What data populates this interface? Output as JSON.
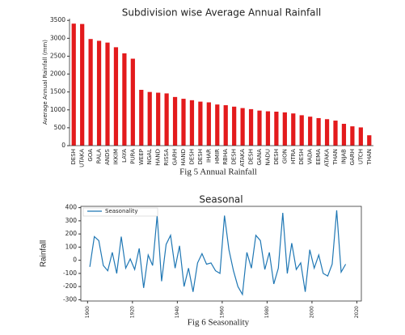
{
  "chart_data": [
    {
      "type": "bar",
      "title": "Subdivision wise Average Annual Rainfall",
      "ylabel": "Average Annual Rainfall (mm)",
      "caption": "Fig 5 Annual Rainfall",
      "categories": [
        "DESH",
        "UTAKA",
        "GOA",
        "RALA",
        "ANDS",
        "IKKIM",
        "LAYA",
        "PURA",
        "WEEP",
        "NGAL",
        "HAND",
        "RISSA",
        "GARH",
        "HAND",
        "DESH",
        "DESH",
        "IHAR",
        "HMIR",
        "RBHA",
        "DESH",
        "ATAKA",
        "DESH",
        "GANA",
        "NADU",
        "DESH",
        "GION",
        "HTRA",
        "DESH",
        "VADA",
        "EEMA",
        "ATAKA",
        "THAN",
        "INJAB",
        "GARH",
        "UTCH",
        "THAN"
      ],
      "values": [
        3410,
        3400,
        2980,
        2930,
        2880,
        2750,
        2580,
        2430,
        1560,
        1500,
        1480,
        1460,
        1360,
        1310,
        1270,
        1230,
        1210,
        1150,
        1130,
        1090,
        1050,
        1020,
        980,
        960,
        950,
        930,
        900,
        850,
        810,
        770,
        740,
        700,
        610,
        540,
        510,
        290
      ],
      "color": "#e31a1c",
      "ylim": [
        0,
        3550
      ],
      "yticks": [
        0,
        500,
        1000,
        1500,
        2000,
        2500,
        3000,
        3500
      ]
    },
    {
      "type": "line",
      "title": "Seasonal",
      "ylabel": "Rainfall",
      "caption": "Fig 6 Seasonality",
      "x": [
        1901,
        1903,
        1905,
        1907,
        1909,
        1911,
        1913,
        1915,
        1917,
        1919,
        1921,
        1923,
        1925,
        1927,
        1929,
        1931,
        1933,
        1935,
        1937,
        1939,
        1941,
        1943,
        1945,
        1947,
        1949,
        1951,
        1953,
        1955,
        1957,
        1959,
        1961,
        1963,
        1965,
        1967,
        1969,
        1971,
        1973,
        1975,
        1977,
        1979,
        1981,
        1983,
        1985,
        1987,
        1989,
        1991,
        1993,
        1995,
        1997,
        1999,
        2001,
        2003,
        2005,
        2007,
        2009,
        2011,
        2013,
        2015
      ],
      "series": [
        {
          "name": "Seasonality",
          "color": "#1f77b4",
          "values": [
            -50,
            180,
            150,
            -40,
            -80,
            60,
            -100,
            180,
            -60,
            10,
            -70,
            90,
            -210,
            40,
            -40,
            340,
            -160,
            120,
            190,
            -60,
            110,
            -200,
            -60,
            -240,
            -20,
            50,
            -30,
            -20,
            -80,
            -100,
            340,
            80,
            -80,
            -200,
            -260,
            60,
            -60,
            190,
            150,
            -70,
            60,
            -180,
            -60,
            360,
            -100,
            130,
            -70,
            -20,
            -240,
            80,
            -60,
            40,
            -100,
            -120,
            -30,
            380,
            -90,
            -30
          ]
        }
      ],
      "legend": "upper left",
      "xlim": [
        1897,
        2022
      ],
      "xticks": [
        1900,
        1920,
        1940,
        1960,
        1980,
        2000,
        2020
      ],
      "ylim": [
        -310,
        410
      ],
      "yticks": [
        -300,
        -200,
        -100,
        0,
        100,
        200,
        300,
        400
      ]
    }
  ]
}
